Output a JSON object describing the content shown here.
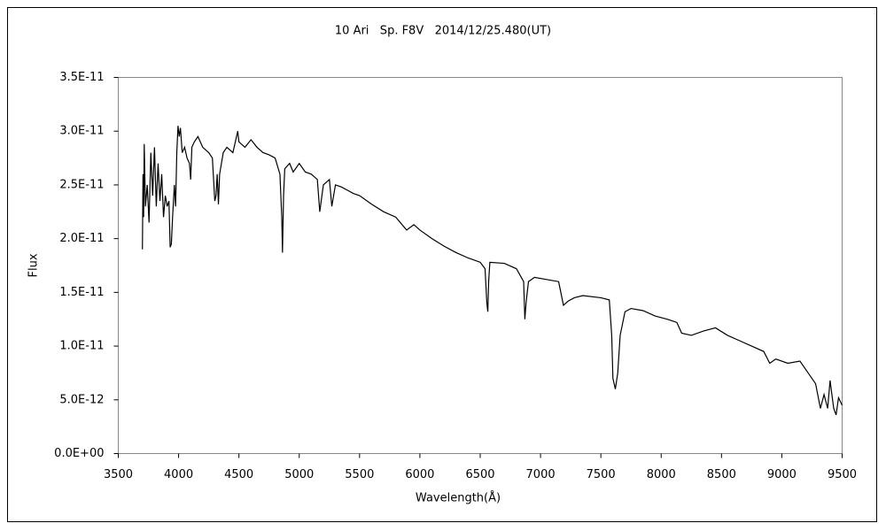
{
  "chart_data": {
    "type": "line",
    "title": "10 Ari   Sp. F8V   2014/12/25.480(UT)",
    "x_label": "Wavelength(Å)",
    "y_label": "Flux",
    "xlim": [
      3500,
      9500
    ],
    "xticks": [
      3500,
      4000,
      4500,
      5000,
      5500,
      6000,
      6500,
      7000,
      7500,
      8000,
      8500,
      9000,
      9500
    ],
    "ylim": [
      0,
      3.5e-11
    ],
    "yticks": [
      {
        "value": 0,
        "label": "0.0E+00"
      },
      {
        "value": 5e-12,
        "label": "5.0E-12"
      },
      {
        "value": 1e-11,
        "label": "1.0E-11"
      },
      {
        "value": 1.5e-11,
        "label": "1.5E-11"
      },
      {
        "value": 2e-11,
        "label": "2.0E-11"
      },
      {
        "value": 2.5e-11,
        "label": "2.5E-11"
      },
      {
        "value": 3e-11,
        "label": "3.0E-11"
      },
      {
        "value": 3.5e-11,
        "label": "3.5E-11"
      }
    ],
    "grid": false,
    "color": "#000000",
    "x": [
      3700,
      3705,
      3710,
      3715,
      3725,
      3740,
      3755,
      3770,
      3785,
      3800,
      3815,
      3830,
      3845,
      3860,
      3875,
      3890,
      3905,
      3920,
      3930,
      3940,
      3950,
      3965,
      3975,
      3985,
      3995,
      4005,
      4015,
      4030,
      4050,
      4070,
      4090,
      4100,
      4110,
      4130,
      4160,
      4200,
      4250,
      4280,
      4300,
      4310,
      4320,
      4330,
      4340,
      4370,
      4400,
      4450,
      4490,
      4500,
      4550,
      4600,
      4650,
      4700,
      4750,
      4800,
      4840,
      4855,
      4861,
      4870,
      4880,
      4920,
      4950,
      5000,
      5050,
      5100,
      5150,
      5170,
      5200,
      5250,
      5270,
      5300,
      5350,
      5400,
      5450,
      5500,
      5600,
      5700,
      5800,
      5890,
      5950,
      6000,
      6100,
      6200,
      6300,
      6400,
      6500,
      6540,
      6555,
      6563,
      6570,
      6580,
      6700,
      6800,
      6860,
      6870,
      6880,
      6900,
      6950,
      7050,
      7150,
      7190,
      7230,
      7280,
      7350,
      7500,
      7570,
      7590,
      7600,
      7620,
      7640,
      7660,
      7700,
      7750,
      7850,
      7950,
      8050,
      8130,
      8170,
      8250,
      8350,
      8450,
      8550,
      8650,
      8750,
      8850,
      8900,
      8950,
      9050,
      9150,
      9200,
      9280,
      9320,
      9350,
      9380,
      9400,
      9430,
      9450,
      9470,
      9500
    ],
    "values": [
      1.9e-11,
      2.6e-11,
      2.2e-11,
      2.88e-11,
      2.3e-11,
      2.5e-11,
      2.15e-11,
      2.8e-11,
      2.4e-11,
      2.85e-11,
      2.3e-11,
      2.7e-11,
      2.35e-11,
      2.6e-11,
      2.2e-11,
      2.4e-11,
      2.3e-11,
      2.35e-11,
      1.92e-11,
      1.95e-11,
      2.2e-11,
      2.5e-11,
      2.3e-11,
      2.8e-11,
      3.05e-11,
      2.95e-11,
      3.03e-11,
      2.8e-11,
      2.85e-11,
      2.75e-11,
      2.7e-11,
      2.55e-11,
      2.85e-11,
      2.9e-11,
      2.95e-11,
      2.85e-11,
      2.8e-11,
      2.75e-11,
      2.35e-11,
      2.4e-11,
      2.6e-11,
      2.32e-11,
      2.6e-11,
      2.8e-11,
      2.85e-11,
      2.8e-11,
      3e-11,
      2.9e-11,
      2.85e-11,
      2.92e-11,
      2.85e-11,
      2.8e-11,
      2.78e-11,
      2.75e-11,
      2.6e-11,
      2.2e-11,
      1.87e-11,
      2.4e-11,
      2.65e-11,
      2.7e-11,
      2.62e-11,
      2.7e-11,
      2.62e-11,
      2.6e-11,
      2.55e-11,
      2.25e-11,
      2.5e-11,
      2.55e-11,
      2.3e-11,
      2.5e-11,
      2.48e-11,
      2.45e-11,
      2.42e-11,
      2.4e-11,
      2.32e-11,
      2.25e-11,
      2.2e-11,
      2.08e-11,
      2.13e-11,
      2.08e-11,
      2e-11,
      1.93e-11,
      1.87e-11,
      1.82e-11,
      1.78e-11,
      1.72e-11,
      1.4e-11,
      1.32e-11,
      1.6e-11,
      1.78e-11,
      1.77e-11,
      1.72e-11,
      1.6e-11,
      1.25e-11,
      1.4e-11,
      1.6e-11,
      1.64e-11,
      1.62e-11,
      1.6e-11,
      1.38e-11,
      1.42e-11,
      1.45e-11,
      1.47e-11,
      1.45e-11,
      1.43e-11,
      1.1e-11,
      7e-12,
      6e-12,
      7.5e-12,
      1.1e-11,
      1.32e-11,
      1.35e-11,
      1.33e-11,
      1.28e-11,
      1.25e-11,
      1.22e-11,
      1.12e-11,
      1.1e-11,
      1.14e-11,
      1.17e-11,
      1.1e-11,
      1.05e-11,
      1e-11,
      9.5e-12,
      8.4e-12,
      8.8e-12,
      8.4e-12,
      8.6e-12,
      7.8e-12,
      6.5e-12,
      4.2e-12,
      5.5e-12,
      4.2e-12,
      6.8e-12,
      4.2e-12,
      3.6e-12,
      5.2e-12,
      4.5e-12
    ]
  }
}
